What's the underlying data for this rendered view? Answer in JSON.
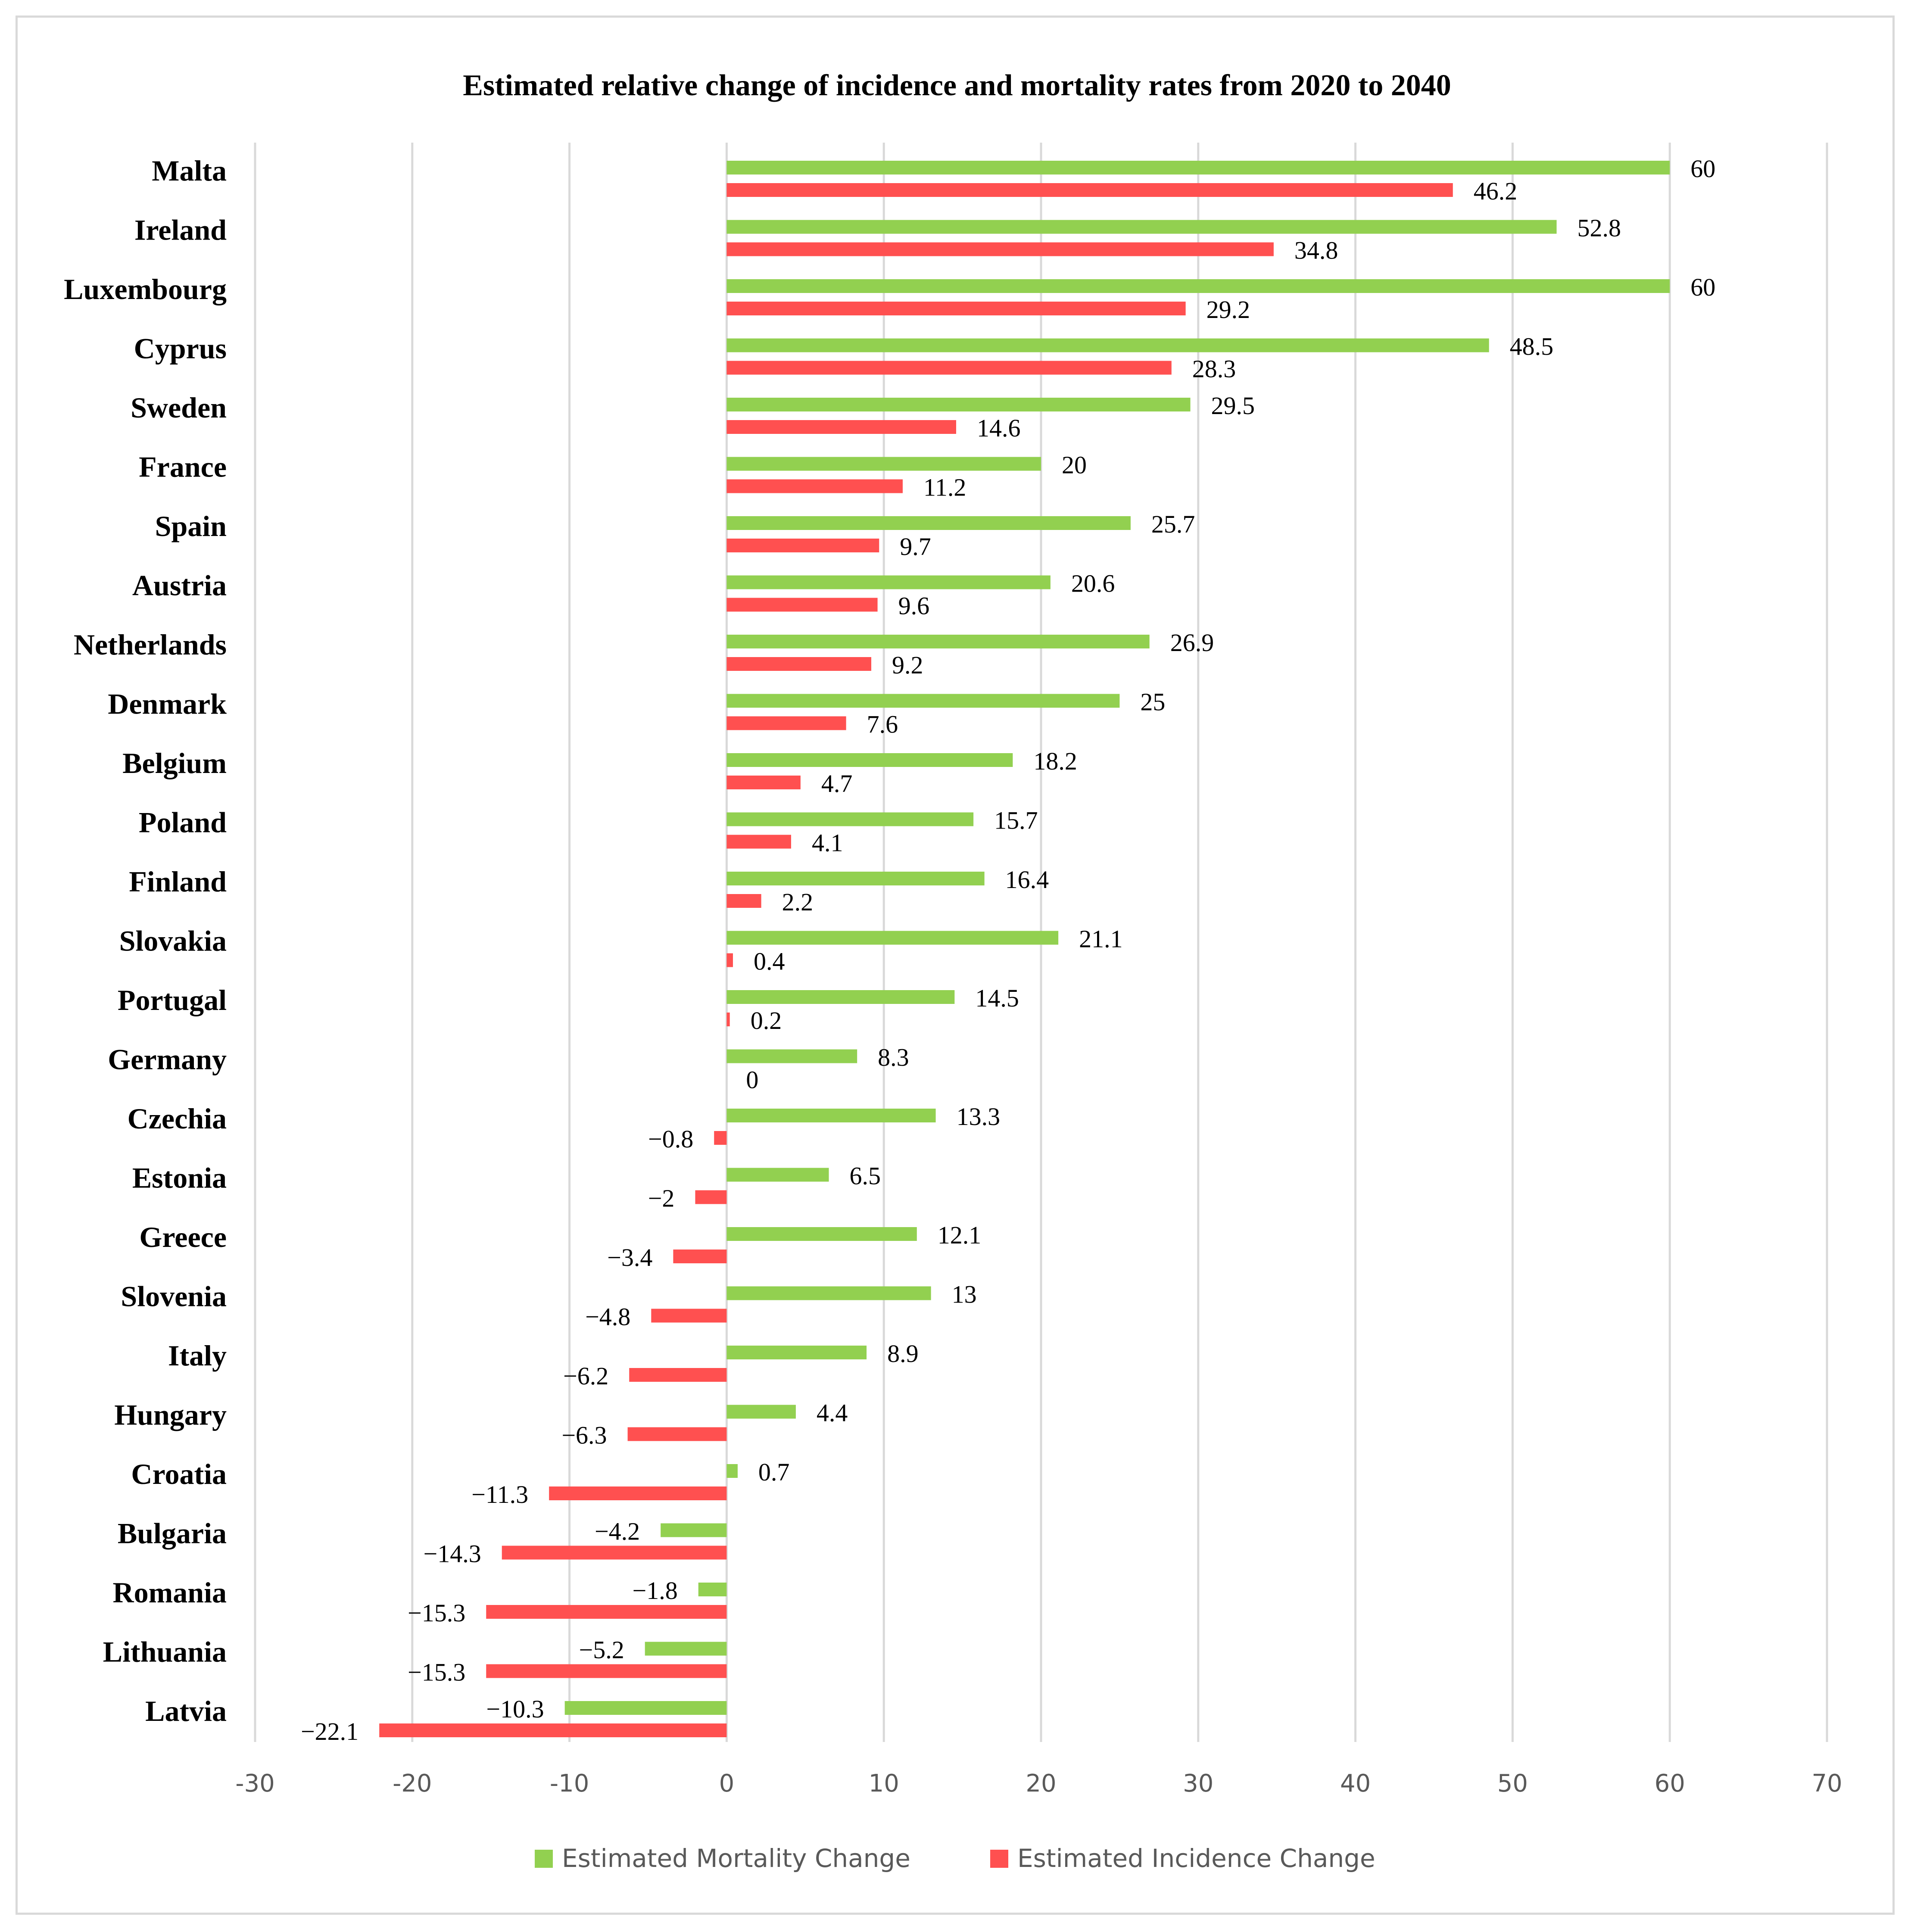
{
  "chart_data": {
    "type": "bar",
    "orientation": "horizontal",
    "title": "Estimated relative change of incidence and mortality rates from 2020 to 2040",
    "xlabel": "",
    "ylabel": "",
    "xlim": [
      -30,
      70
    ],
    "x_ticks": [
      -30,
      -20,
      -10,
      0,
      10,
      20,
      30,
      40,
      50,
      60,
      70
    ],
    "x_tick_labels": [
      "-30",
      "-20",
      "-10",
      "0",
      "10",
      "20",
      "30",
      "40",
      "50",
      "60",
      "70"
    ],
    "grid": "vertical",
    "legend_position": "bottom",
    "categories": [
      "Malta",
      "Ireland",
      "Luxembourg",
      "Cyprus",
      "Sweden",
      "France",
      "Spain",
      "Austria",
      "Netherlands",
      "Denmark",
      "Belgium",
      "Poland",
      "Finland",
      "Slovakia",
      "Portugal",
      "Germany",
      "Czechia",
      "Estonia",
      "Greece",
      "Slovenia",
      "Italy",
      "Hungary",
      "Croatia",
      "Bulgaria",
      "Romania",
      "Lithuania",
      "Latvia"
    ],
    "series": [
      {
        "name": "Estimated Mortality Change",
        "color": "#92d050",
        "values": [
          60,
          52.8,
          60,
          48.5,
          29.5,
          20,
          25.7,
          20.6,
          26.9,
          25,
          18.2,
          15.7,
          16.4,
          21.1,
          14.5,
          8.3,
          13.3,
          6.5,
          12.1,
          13,
          8.9,
          4.4,
          0.7,
          -4.2,
          -1.8,
          -5.2,
          -10.3
        ],
        "labels": [
          "60",
          "52.8",
          "60",
          "48.5",
          "29.5",
          "20",
          "25.7",
          "20.6",
          "26.9",
          "25",
          "18.2",
          "15.7",
          "16.4",
          "21.1",
          "14.5",
          "8.3",
          "13.3",
          "6.5",
          "12.1",
          "13",
          "8.9",
          "4.4",
          "0.7",
          "−4.2",
          "−1.8",
          "−5.2",
          "−10.3"
        ]
      },
      {
        "name": "Estimated Incidence Change",
        "color": "#ff5050",
        "values": [
          46.2,
          34.8,
          29.2,
          28.3,
          14.6,
          11.2,
          9.7,
          9.6,
          9.2,
          7.6,
          4.7,
          4.1,
          2.2,
          0.4,
          0.2,
          0,
          -0.8,
          -2,
          -3.4,
          -4.8,
          -6.2,
          -6.3,
          -11.3,
          -14.3,
          -15.3,
          -15.3,
          -22.1
        ],
        "labels": [
          "46.2",
          "34.8",
          "29.2",
          "28.3",
          "14.6",
          "11.2",
          "9.7",
          "9.6",
          "9.2",
          "7.6",
          "4.7",
          "4.1",
          "2.2",
          "0.4",
          "0.2",
          "0",
          "−0.8",
          "−2",
          "−3.4",
          "−4.8",
          "−6.2",
          "−6.3",
          "−11.3",
          "−14.3",
          "−15.3",
          "−15.3",
          "−22.1"
        ]
      }
    ]
  }
}
